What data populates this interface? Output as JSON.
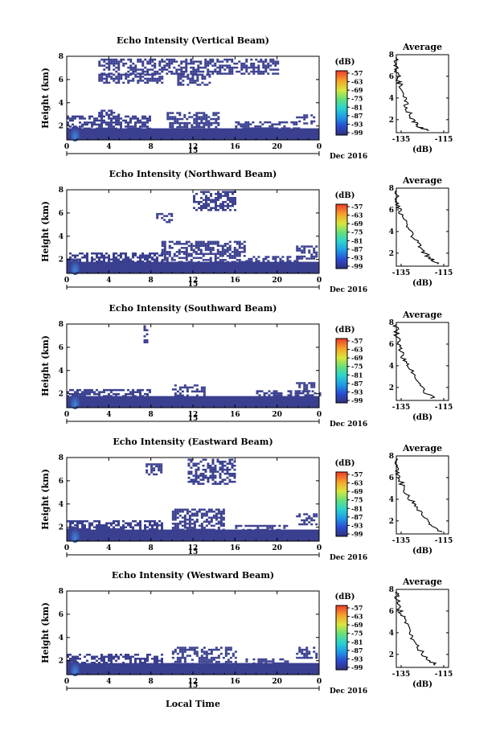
{
  "figure": {
    "xlabel_bottom": "Local Time",
    "date_label": "Dec 2016",
    "day_label": "15",
    "colorbar_unit": "(dB)"
  },
  "chart_data": [
    {
      "type": "heatmap",
      "title": "Echo Intensity (Vertical Beam)",
      "ylabel": "Height (km)",
      "xlim": [
        0,
        24
      ],
      "ylim": [
        0.8,
        8
      ],
      "x_ticks": [
        "0",
        "4",
        "8",
        "12",
        "16",
        "20",
        "0"
      ],
      "y_ticks": [
        "2",
        "4",
        "6",
        "8"
      ],
      "colorbar": {
        "unit": "(dB)",
        "ticks": [
          "-57",
          "-63",
          "-69",
          "-75",
          "-81",
          "-87",
          "-93",
          "-99"
        ],
        "range": [
          -99,
          -57
        ]
      },
      "echo_regions": [
        {
          "x": [
            0,
            24
          ],
          "y": [
            0.8,
            1.8
          ]
        },
        {
          "x": [
            0,
            8
          ],
          "y": [
            1.8,
            2.9
          ]
        },
        {
          "x": [
            9.5,
            14.5
          ],
          "y": [
            1.8,
            3.2
          ]
        },
        {
          "x": [
            16,
            22
          ],
          "y": [
            1.8,
            2.4
          ]
        },
        {
          "x": [
            21.8,
            23.5
          ],
          "y": [
            2.2,
            3.0
          ]
        },
        {
          "x": [
            3,
            5
          ],
          "y": [
            2.9,
            3.4
          ]
        },
        {
          "x": [
            3,
            20
          ],
          "y": [
            6.5,
            7.8
          ]
        },
        {
          "x": [
            3,
            9
          ],
          "y": [
            5.8,
            6.5
          ]
        },
        {
          "x": [
            10.5,
            13.5
          ],
          "y": [
            5.6,
            6.5
          ]
        }
      ],
      "average": {
        "title": "Average",
        "xlabel": "(dB)",
        "xlim": [
          -135,
          -115
        ],
        "x_ticks": [
          "-135",
          "-115"
        ],
        "y_ticks": [
          "2",
          "4",
          "6",
          "8"
        ],
        "profile": [
          [
            -123,
            1.0
          ],
          [
            -126,
            1.3
          ],
          [
            -128,
            1.8
          ],
          [
            -130,
            2.5
          ],
          [
            -131,
            3.2
          ],
          [
            -132,
            4.0
          ],
          [
            -133,
            4.8
          ],
          [
            -134,
            5.5
          ],
          [
            -134.5,
            6.3
          ],
          [
            -135,
            7.0
          ],
          [
            -135,
            7.8
          ]
        ]
      }
    },
    {
      "type": "heatmap",
      "title": "Echo Intensity (Northward Beam)",
      "ylabel": "Height (km)",
      "xlim": [
        0,
        24
      ],
      "ylim": [
        0.8,
        8
      ],
      "x_ticks": [
        "0",
        "4",
        "8",
        "12",
        "16",
        "20",
        "0"
      ],
      "y_ticks": [
        "2",
        "4",
        "6",
        "8"
      ],
      "colorbar": {
        "unit": "(dB)",
        "ticks": [
          "-57",
          "-63",
          "-69",
          "-75",
          "-81",
          "-87",
          "-93",
          "-99"
        ],
        "range": [
          -99,
          -57
        ]
      },
      "echo_regions": [
        {
          "x": [
            0,
            24
          ],
          "y": [
            0.8,
            1.8
          ]
        },
        {
          "x": [
            0,
            9
          ],
          "y": [
            1.8,
            2.6
          ]
        },
        {
          "x": [
            9,
            17
          ],
          "y": [
            1.8,
            3.6
          ]
        },
        {
          "x": [
            17,
            22
          ],
          "y": [
            1.8,
            2.3
          ]
        },
        {
          "x": [
            21.8,
            23.8
          ],
          "y": [
            2.0,
            3.2
          ]
        },
        {
          "x": [
            12,
            16
          ],
          "y": [
            6.3,
            7.9
          ]
        },
        {
          "x": [
            8.5,
            10
          ],
          "y": [
            5.2,
            6.0
          ]
        }
      ],
      "average": {
        "title": "Average",
        "xlabel": "(dB)",
        "xlim": [
          -135,
          -115
        ],
        "x_ticks": [
          "-135",
          "-115"
        ],
        "y_ticks": [
          "2",
          "4",
          "6",
          "8"
        ],
        "profile": [
          [
            -119,
            1.0
          ],
          [
            -122,
            1.5
          ],
          [
            -125,
            2.2
          ],
          [
            -127,
            3.0
          ],
          [
            -129,
            3.8
          ],
          [
            -131,
            4.6
          ],
          [
            -133,
            5.4
          ],
          [
            -134,
            6.2
          ],
          [
            -135,
            7.0
          ],
          [
            -135,
            7.8
          ]
        ]
      }
    },
    {
      "type": "heatmap",
      "title": "Echo Intensity (Southward Beam)",
      "ylabel": "Height (km)",
      "xlim": [
        0,
        24
      ],
      "ylim": [
        0.8,
        8
      ],
      "x_ticks": [
        "0",
        "4",
        "8",
        "12",
        "16",
        "20",
        "0"
      ],
      "y_ticks": [
        "2",
        "4",
        "6",
        "8"
      ],
      "colorbar": {
        "unit": "(dB)",
        "ticks": [
          "-57",
          "-63",
          "-69",
          "-75",
          "-81",
          "-87",
          "-93",
          "-99"
        ],
        "range": [
          -99,
          -57
        ]
      },
      "echo_regions": [
        {
          "x": [
            0,
            24
          ],
          "y": [
            0.8,
            1.8
          ]
        },
        {
          "x": [
            0,
            8
          ],
          "y": [
            1.8,
            2.4
          ]
        },
        {
          "x": [
            10,
            13
          ],
          "y": [
            1.8,
            2.8
          ]
        },
        {
          "x": [
            18,
            24
          ],
          "y": [
            1.8,
            2.3
          ]
        },
        {
          "x": [
            21.8,
            23.5
          ],
          "y": [
            2.2,
            3.0
          ]
        },
        {
          "x": [
            7.3,
            7.7
          ],
          "y": [
            6.2,
            7.9
          ]
        }
      ],
      "average": {
        "title": "Average",
        "xlabel": "(dB)",
        "xlim": [
          -135,
          -115
        ],
        "x_ticks": [
          "-135",
          "-115"
        ],
        "y_ticks": [
          "2",
          "4",
          "6",
          "8"
        ],
        "profile": [
          [
            -121,
            1.0
          ],
          [
            -124,
            1.6
          ],
          [
            -126,
            2.3
          ],
          [
            -128,
            3.0
          ],
          [
            -130,
            3.8
          ],
          [
            -132,
            4.5
          ],
          [
            -133,
            5.2
          ],
          [
            -134,
            6.0
          ],
          [
            -135,
            7.0
          ],
          [
            -135,
            7.8
          ]
        ]
      }
    },
    {
      "type": "heatmap",
      "title": "Echo Intensity (Eastward Beam)",
      "ylabel": "Height (km)",
      "xlim": [
        0,
        24
      ],
      "ylim": [
        0.8,
        8
      ],
      "x_ticks": [
        "0",
        "4",
        "8",
        "12",
        "16",
        "20",
        "0"
      ],
      "y_ticks": [
        "2",
        "4",
        "6",
        "8"
      ],
      "colorbar": {
        "unit": "(dB)",
        "ticks": [
          "-57",
          "-63",
          "-69",
          "-75",
          "-81",
          "-87",
          "-93",
          "-99"
        ],
        "range": [
          -99,
          -57
        ]
      },
      "echo_regions": [
        {
          "x": [
            0,
            24
          ],
          "y": [
            0.8,
            1.8
          ]
        },
        {
          "x": [
            0,
            9
          ],
          "y": [
            1.8,
            2.6
          ]
        },
        {
          "x": [
            10,
            15
          ],
          "y": [
            1.8,
            3.6
          ]
        },
        {
          "x": [
            16,
            21
          ],
          "y": [
            1.8,
            2.2
          ]
        },
        {
          "x": [
            21.8,
            23.8
          ],
          "y": [
            2.2,
            3.2
          ]
        },
        {
          "x": [
            11.5,
            16
          ],
          "y": [
            5.8,
            7.9
          ]
        },
        {
          "x": [
            7.5,
            9
          ],
          "y": [
            6.5,
            7.5
          ]
        }
      ],
      "average": {
        "title": "Average",
        "xlabel": "(dB)",
        "xlim": [
          -135,
          -115
        ],
        "x_ticks": [
          "-135",
          "-115"
        ],
        "y_ticks": [
          "2",
          "4",
          "6",
          "8"
        ],
        "profile": [
          [
            -118,
            1.0
          ],
          [
            -121,
            1.6
          ],
          [
            -124,
            2.3
          ],
          [
            -127,
            3.0
          ],
          [
            -129,
            3.8
          ],
          [
            -131,
            4.6
          ],
          [
            -133,
            5.4
          ],
          [
            -134,
            6.2
          ],
          [
            -135,
            7.0
          ],
          [
            -135,
            7.8
          ]
        ]
      }
    },
    {
      "type": "heatmap",
      "title": "Echo Intensity (Westward Beam)",
      "ylabel": "Height (km)",
      "xlim": [
        0,
        24
      ],
      "ylim": [
        0.8,
        8
      ],
      "x_ticks": [
        "0",
        "4",
        "8",
        "12",
        "16",
        "20",
        "0"
      ],
      "y_ticks": [
        "2",
        "4",
        "6",
        "8"
      ],
      "colorbar": {
        "unit": "(dB)",
        "ticks": [
          "-57",
          "-63",
          "-69",
          "-75",
          "-81",
          "-87",
          "-93",
          "-99"
        ],
        "range": [
          -99,
          -57
        ]
      },
      "echo_regions": [
        {
          "x": [
            0,
            24
          ],
          "y": [
            0.8,
            1.8
          ]
        },
        {
          "x": [
            0,
            9
          ],
          "y": [
            1.8,
            2.6
          ]
        },
        {
          "x": [
            10,
            16
          ],
          "y": [
            1.8,
            3.2
          ]
        },
        {
          "x": [
            17,
            21
          ],
          "y": [
            1.8,
            2.2
          ]
        },
        {
          "x": [
            21.8,
            23.8
          ],
          "y": [
            2.2,
            3.2
          ]
        }
      ],
      "average": {
        "title": "Average",
        "xlabel": "(dB)",
        "xlim": [
          -135,
          -115
        ],
        "x_ticks": [
          "-135",
          "-115"
        ],
        "y_ticks": [
          "2",
          "4",
          "6",
          "8"
        ],
        "profile": [
          [
            -120,
            1.0
          ],
          [
            -123,
            1.6
          ],
          [
            -126,
            2.4
          ],
          [
            -128,
            3.2
          ],
          [
            -130,
            4.0
          ],
          [
            -131,
            4.8
          ],
          [
            -133,
            5.6
          ],
          [
            -134,
            6.4
          ],
          [
            -135,
            7.2
          ],
          [
            -135,
            7.8
          ]
        ]
      }
    }
  ],
  "colors": {
    "echo": "#3a3f8f",
    "strong": "#2f7fd8",
    "axis": "#000000"
  }
}
